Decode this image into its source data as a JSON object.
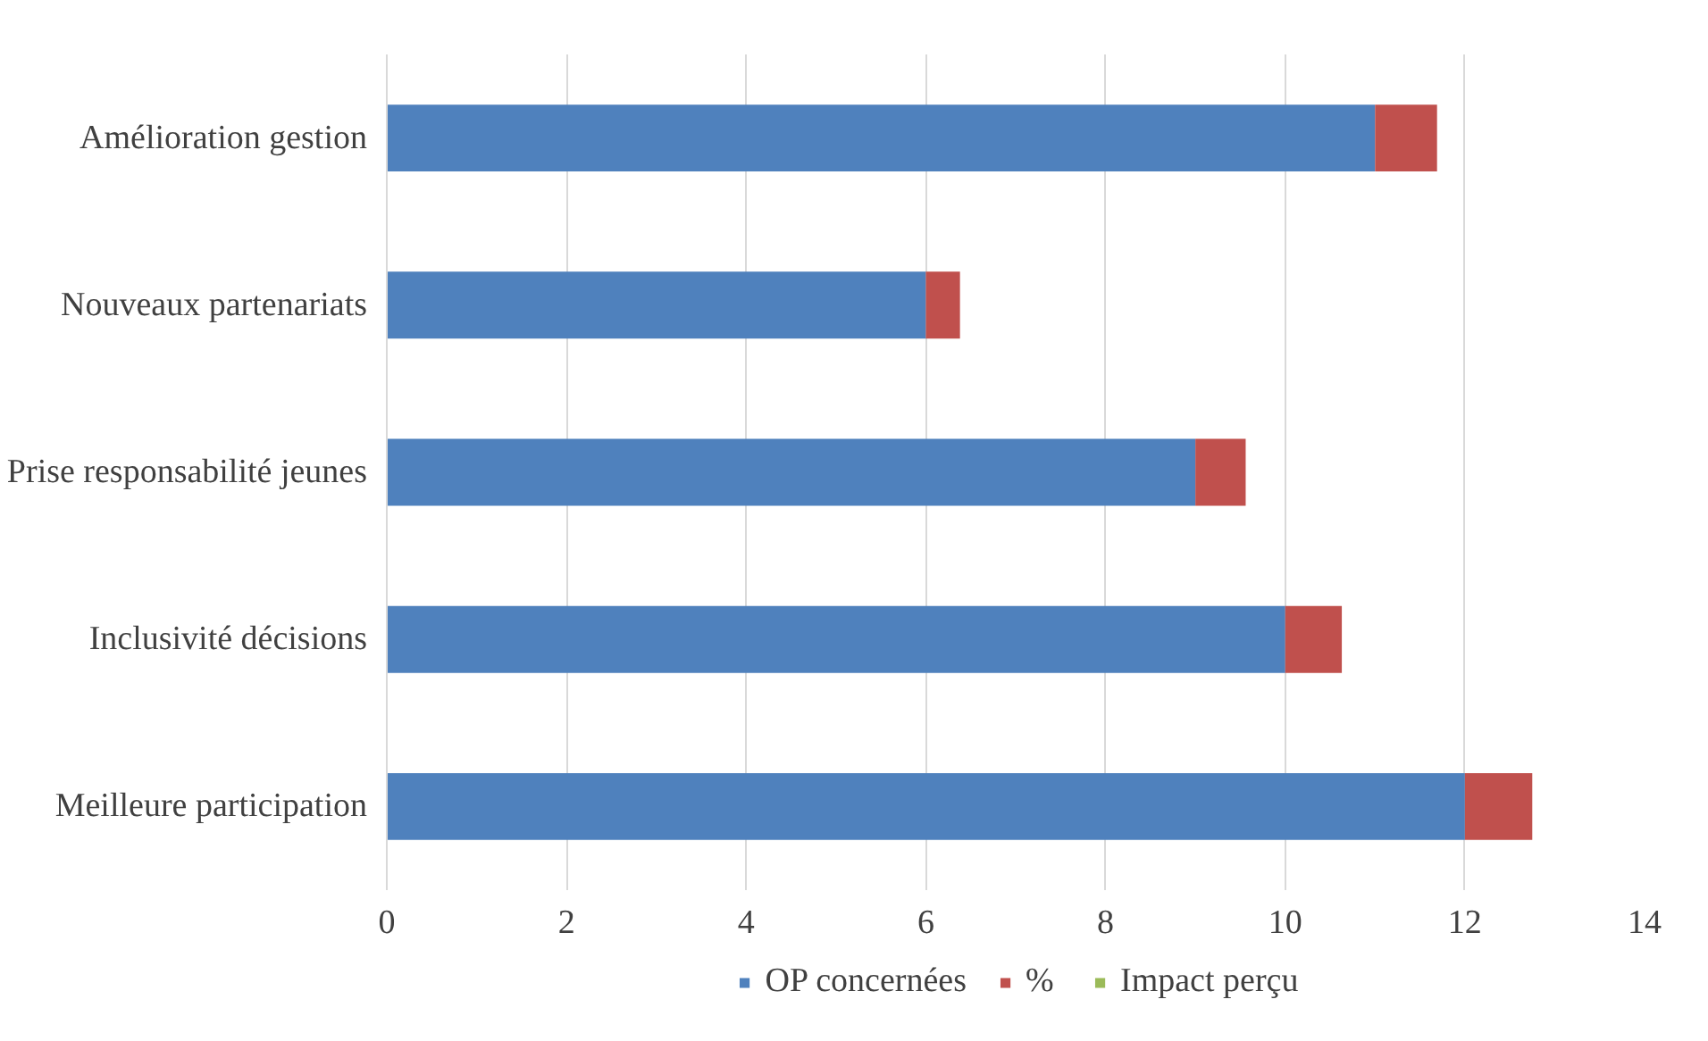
{
  "chart_data": {
    "type": "bar",
    "orientation": "horizontal",
    "stacked": true,
    "categories": [
      "Amélioration gestion",
      "Nouveaux partenariats",
      "Prise responsabilité jeunes",
      "Inclusivité décisions",
      "Meilleure participation"
    ],
    "series": [
      {
        "name": "OP concernées",
        "color": "#4f81bd",
        "values": [
          11,
          6,
          9,
          10,
          12
        ]
      },
      {
        "name": "%",
        "color": "#c0504d",
        "values": [
          0.69,
          0.38,
          0.56,
          0.63,
          0.75
        ]
      },
      {
        "name": "Impact perçu",
        "color": "#9bbb59",
        "values": [
          0,
          0,
          0,
          0,
          0
        ]
      }
    ],
    "xlim": [
      0,
      14
    ],
    "xticks": [
      0,
      2,
      4,
      6,
      8,
      10,
      12,
      14
    ],
    "grid": "x",
    "legend": "bottom"
  }
}
